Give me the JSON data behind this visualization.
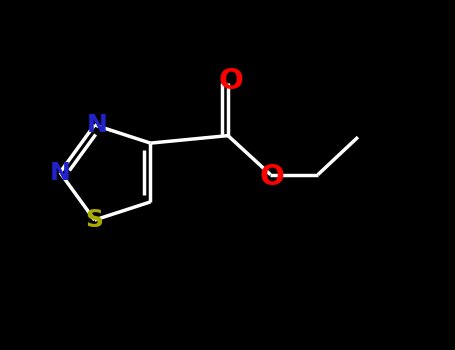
{
  "background_color": "#000000",
  "bond_color": "#000000",
  "atom_colors": {
    "N": "#2222cc",
    "S": "#aaaa00",
    "O": "#ff0000",
    "C": "#000000"
  },
  "figsize": [
    4.55,
    3.5
  ],
  "dpi": 100,
  "xlim": [
    0,
    9
  ],
  "ylim": [
    0,
    7
  ]
}
